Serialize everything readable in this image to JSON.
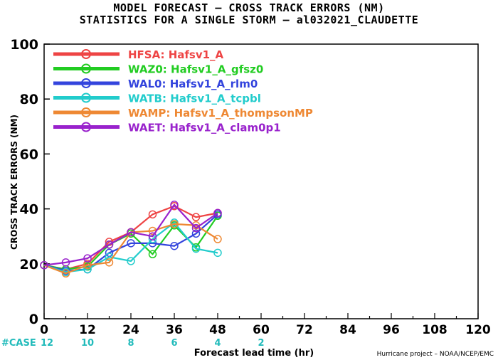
{
  "chart_data": {
    "type": "line",
    "title": "MODEL FORECAST – CROSS TRACK ERRORS (NM)",
    "subtitle": "STATISTICS FOR A SINGLE STORM – al032021_CLAUDETTE",
    "xlabel": "Forecast lead time (hr)",
    "ylabel": "CROSS TRACK ERRORS (NM)",
    "xlim": [
      0,
      120
    ],
    "ylim": [
      0,
      100
    ],
    "xticks": [
      0,
      12,
      24,
      36,
      48,
      60,
      72,
      84,
      96,
      108,
      120
    ],
    "yticks": [
      0,
      20,
      40,
      60,
      80,
      100
    ],
    "grid": false,
    "legend_position": "top-left",
    "x": [
      0,
      6,
      12,
      18,
      24,
      30,
      36,
      42,
      48
    ],
    "series": [
      {
        "name": "HFSA: Hafsv1_A",
        "color": "#ee4444",
        "values": [
          19.5,
          18,
          20,
          28,
          31.5,
          38,
          41,
          37,
          38.5
        ]
      },
      {
        "name": "WAZ0: Hafsv1_A_gfsz0",
        "color": "#22cc22",
        "values": [
          19.5,
          18,
          19,
          27,
          31,
          23.5,
          34,
          26,
          37.5
        ]
      },
      {
        "name": "WAL0: Hafsv1_A_rlm0",
        "color": "#3344dd",
        "values": [
          19.5,
          17.5,
          18,
          24,
          27.5,
          27.5,
          26.5,
          31,
          38
        ]
      },
      {
        "name": "WATB: Hafsv1_A_tcpbl",
        "color": "#22cccc",
        "values": [
          19.5,
          17,
          18,
          22.5,
          21,
          29,
          35,
          25.5,
          24
        ]
      },
      {
        "name": "WAMP: Hafsv1_A_thompsonMP",
        "color": "#ee8833",
        "values": [
          19.5,
          16.5,
          19.5,
          20.5,
          31.5,
          32,
          34.5,
          34,
          29
        ]
      },
      {
        "name": "WAET: Hafsv1_A_clam0p1",
        "color": "#9922cc",
        "values": [
          19.5,
          20.5,
          22,
          27,
          31.5,
          30,
          41.5,
          33,
          38.5
        ]
      }
    ],
    "cases": {
      "label": "#CASE",
      "x": [
        0,
        12,
        24,
        36,
        48,
        60
      ],
      "values": [
        12,
        10,
        8,
        6,
        4,
        2
      ],
      "color": "#22bbbb"
    }
  },
  "footer": "Hurricane project – NOAA/NCEP/EMC"
}
